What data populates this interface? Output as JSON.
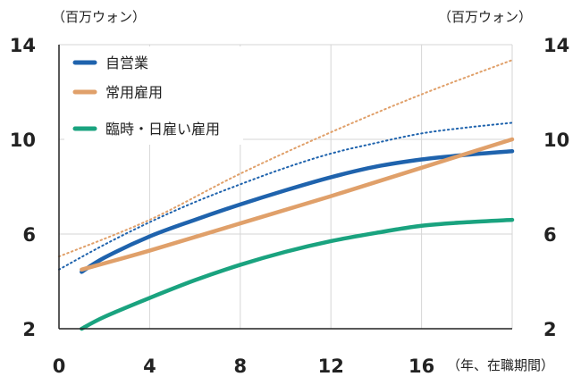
{
  "chart_data": {
    "type": "line",
    "y_unit_left": "（百万ウォン）",
    "y_unit_right": "（百万ウォン）",
    "x_unit": "（年、在職期間）",
    "xlim": [
      0,
      20
    ],
    "ylim": [
      2,
      14
    ],
    "x_ticks": [
      0,
      4,
      8,
      12,
      16
    ],
    "y_ticks": [
      2,
      6,
      10,
      14
    ],
    "grid": true,
    "legend_position": "top-left",
    "series": [
      {
        "name": "自営業",
        "color": "#1f63ad",
        "style": "solid",
        "in_legend": true,
        "x": [
          1,
          2,
          4,
          6,
          8,
          10,
          12,
          14,
          16,
          18,
          20
        ],
        "y": [
          4.4,
          5.0,
          5.9,
          6.6,
          7.25,
          7.85,
          8.4,
          8.85,
          9.15,
          9.35,
          9.5
        ]
      },
      {
        "name": "常用雇用",
        "color": "#e0a06a",
        "style": "solid",
        "in_legend": true,
        "x": [
          1,
          4,
          8,
          12,
          16,
          20
        ],
        "y": [
          4.5,
          5.3,
          6.45,
          7.6,
          8.8,
          10.0
        ]
      },
      {
        "name": "臨時・日雇い雇用",
        "color": "#1aa37f",
        "style": "solid",
        "in_legend": true,
        "x": [
          1,
          2,
          4,
          6,
          8,
          10,
          12,
          14,
          16,
          18,
          20
        ],
        "y": [
          2.0,
          2.5,
          3.3,
          4.05,
          4.7,
          5.25,
          5.7,
          6.05,
          6.35,
          6.5,
          6.6
        ]
      },
      {
        "name": "",
        "color": "#e0a06a",
        "style": "dotted",
        "in_legend": false,
        "x": [
          0,
          4,
          8,
          12,
          16,
          20
        ],
        "y": [
          5.05,
          6.6,
          8.55,
          10.3,
          11.9,
          13.35
        ]
      },
      {
        "name": "",
        "color": "#1f63ad",
        "style": "dotted",
        "in_legend": false,
        "x": [
          0,
          2,
          4,
          6,
          8,
          10,
          12,
          14,
          16,
          18,
          20
        ],
        "y": [
          4.5,
          5.55,
          6.5,
          7.35,
          8.1,
          8.8,
          9.4,
          9.85,
          10.25,
          10.5,
          10.7
        ]
      }
    ]
  }
}
